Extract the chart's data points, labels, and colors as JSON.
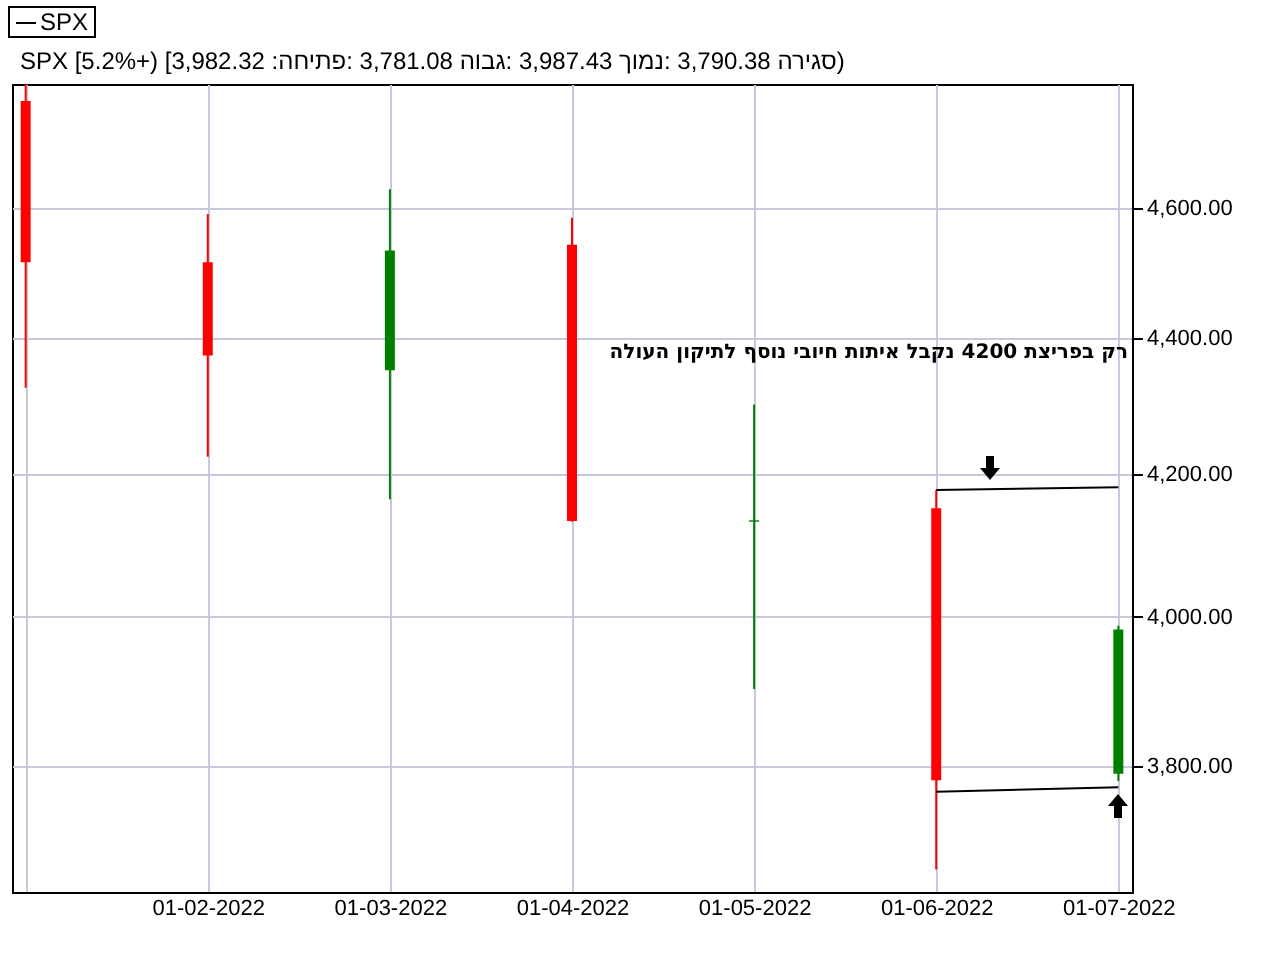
{
  "chart_data": {
    "type": "candlestick",
    "title": "SPX [5.2%+) [3,982.32 :סגירה  3,790.38 :נמוך  3,987.43 :גבוה  3,781.08 :פתיחה)",
    "annotations": [
      "רק בפריצת 4200 נקבל איתות חיובי נוסף לתיקון העולה"
    ],
    "categories": [
      null,
      "01-02-2022",
      "01-03-2022",
      "01-04-2022",
      "01-05-2022",
      "01-06-2022",
      "01-07-2022"
    ],
    "series": [
      {
        "name": "SPX",
        "ohlc": [
          [
            4772,
            4800,
            4326,
            4516
          ],
          [
            4516,
            4591,
            4225,
            4374
          ],
          [
            4352,
            4630,
            4164,
            4534
          ],
          [
            4543,
            4585,
            4132,
            4133
          ],
          [
            4132,
            4301,
            3902,
            4134
          ],
          [
            4151,
            4177,
            3668,
            3782
          ],
          [
            3790.38,
            3987.43,
            3781.08,
            3982.32
          ]
        ],
        "colors": [
          "#ff0000",
          "#ff0000",
          "#008000",
          "#ff0000",
          "#008000",
          "#ff0000",
          "#008000"
        ]
      },
      {
        "type": "line",
        "x": [
          "01-06-2022",
          "01-07-2022"
        ],
        "values": [
          4177,
          4181
        ],
        "color": "#000000"
      },
      {
        "type": "line",
        "x": [
          "01-06-2022",
          "01-07-2022"
        ],
        "values": [
          3767,
          3773
        ],
        "color": "#000000"
      }
    ],
    "log": true,
    "ylim": [
      3640,
      4800
    ],
    "yticks": [
      {
        "value": 3800,
        "label": "3,800.00"
      },
      {
        "value": 4000,
        "label": "4,000.00"
      },
      {
        "value": 4200,
        "label": "4,200.00"
      },
      {
        "value": 4400,
        "label": "4,400.00"
      },
      {
        "value": 4600,
        "label": "4,600.00"
      }
    ],
    "grid": true,
    "legend": "top left"
  }
}
